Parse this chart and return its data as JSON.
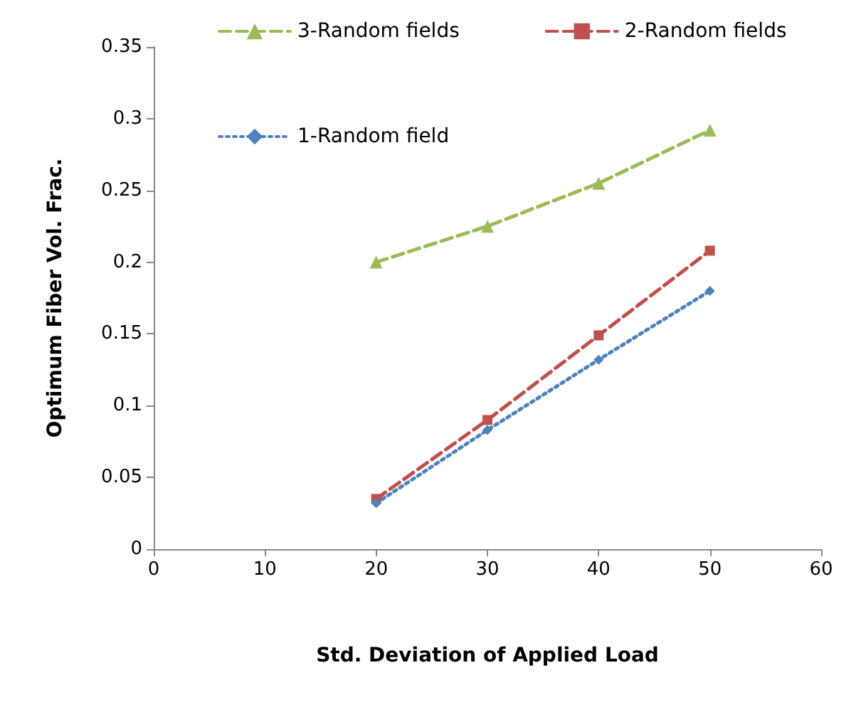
{
  "chart_data": {
    "type": "line",
    "xlabel": "Std. Deviation of Applied Load",
    "ylabel": "Optimum Fiber Vol. Frac.",
    "x": [
      20,
      30,
      40,
      50
    ],
    "series": [
      {
        "name": "3-Random fields",
        "color": "#9bbb59",
        "values": [
          0.2,
          0.225,
          0.255,
          0.292
        ],
        "marker": "triangle",
        "line_style": "dashed"
      },
      {
        "name": "2-Random fields",
        "color": "#c0504d",
        "values": [
          0.035,
          0.09,
          0.149,
          0.208
        ],
        "marker": "square",
        "line_style": "dashed"
      },
      {
        "name": "1-Random field",
        "color": "#4f81bd",
        "values": [
          0.032,
          0.083,
          0.132,
          0.18
        ],
        "marker": "diamond",
        "line_style": "dotted"
      }
    ],
    "xlim": [
      0,
      60
    ],
    "xticks": [
      0,
      10,
      20,
      30,
      40,
      50,
      60
    ],
    "ylim": [
      0,
      0.35
    ],
    "yticks": [
      0,
      0.05,
      0.1,
      0.15,
      0.2,
      0.25,
      0.3,
      0.35
    ],
    "grid": false,
    "legend": "top"
  }
}
